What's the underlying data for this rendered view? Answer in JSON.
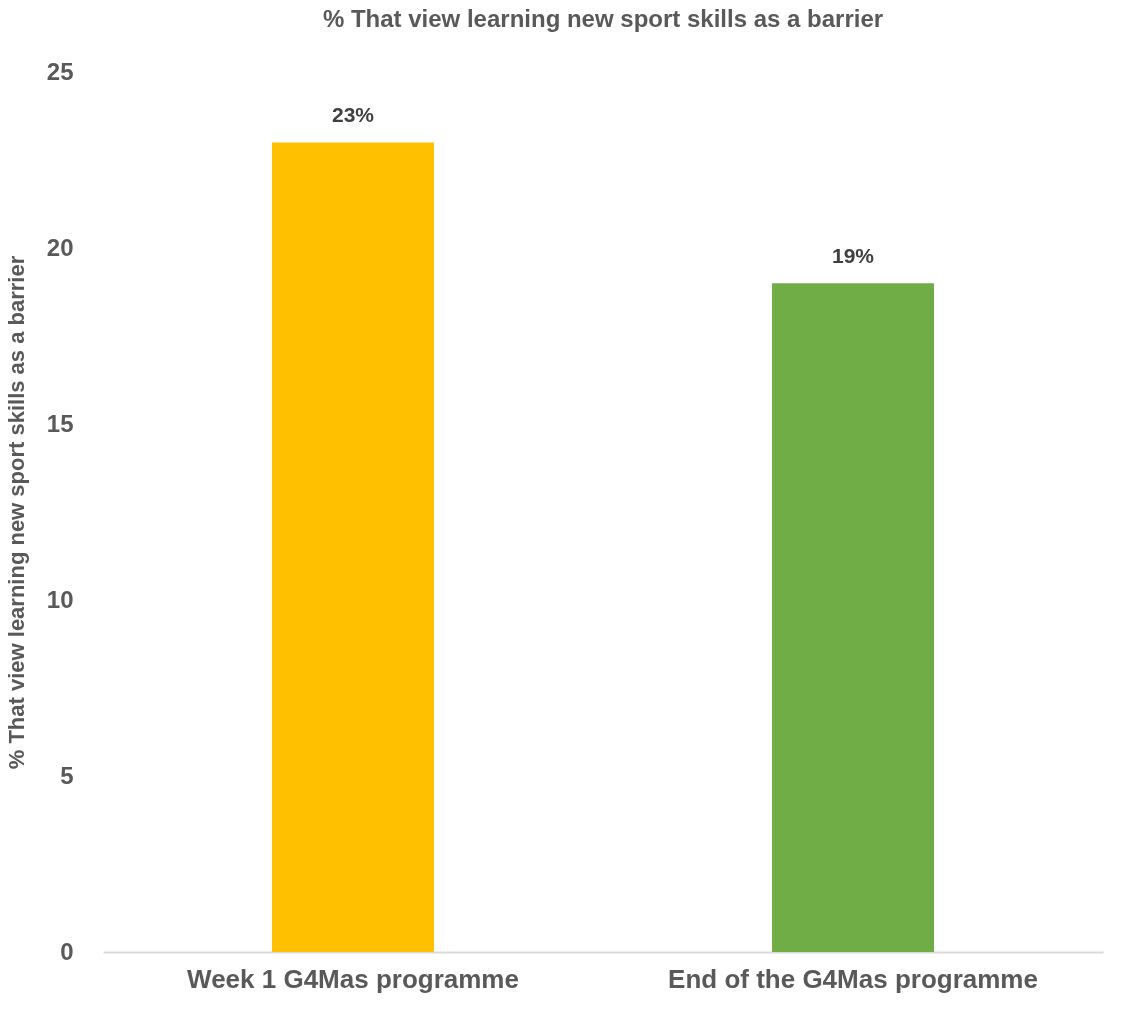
{
  "chart_data": {
    "type": "bar",
    "title": "% That view learning new sport skills as a barrier",
    "ylabel": "% That view learning new sport skills as a barrier",
    "categories": [
      "Week 1 G4Mas programme",
      "End of the G4Mas programme"
    ],
    "values": [
      23,
      19
    ],
    "colors": [
      "#ffc000",
      "#70ad47"
    ],
    "value_labels": [
      "23%",
      "19%"
    ],
    "ylim": [
      0,
      25
    ],
    "yticks": [
      0,
      5,
      10,
      15,
      20,
      25
    ],
    "grid": false
  }
}
